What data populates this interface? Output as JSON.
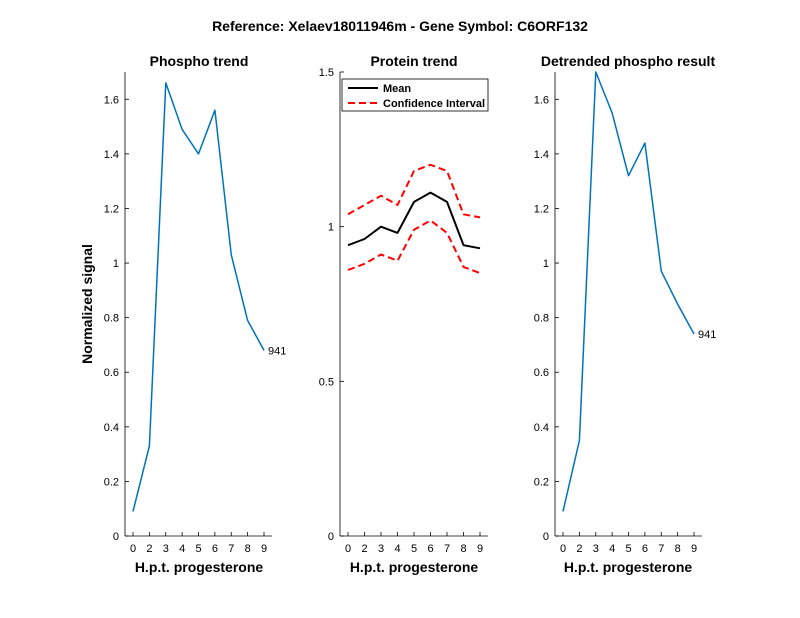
{
  "figure": {
    "title": "Reference:  Xelaev18011946m - Gene Symbol:  C6ORF132"
  },
  "colors": {
    "series_blue": "#0072BD",
    "mean_black": "#000000",
    "ci_red": "#FF0000"
  },
  "chart_data": [
    {
      "type": "line",
      "title": "Phospho trend",
      "xlabel": "H.p.t. progesterone",
      "ylabel": "Normalized signal",
      "x_ticks": [
        "0",
        "2",
        "3",
        "4",
        "5",
        "6",
        "7",
        "8",
        "9"
      ],
      "y_ticks": [
        "0",
        "0.2",
        "0.4",
        "0.6",
        "0.8",
        "1",
        "1.2",
        "1.4",
        "1.6"
      ],
      "ylim": [
        0,
        1.7
      ],
      "series": [
        {
          "values": [
            0.09,
            0.33,
            1.66,
            1.49,
            1.4,
            1.56,
            1.03,
            0.79,
            0.68
          ]
        }
      ],
      "end_label": "941"
    },
    {
      "type": "line",
      "title": "Protein trend",
      "xlabel": "H.p.t. progesterone",
      "ylabel": "",
      "x_ticks": [
        "0",
        "2",
        "3",
        "4",
        "5",
        "6",
        "7",
        "8",
        "9"
      ],
      "y_ticks": [
        "0",
        "0.5",
        "1",
        "1.5"
      ],
      "ylim": [
        0,
        1.5
      ],
      "legend": {
        "position": "top-left"
      },
      "series": [
        {
          "name": "Mean",
          "values": [
            0.94,
            0.96,
            1.0,
            0.98,
            1.08,
            1.11,
            1.08,
            0.94,
            0.93
          ]
        },
        {
          "name": "Confidence Interval",
          "values": [
            1.04,
            1.07,
            1.1,
            1.07,
            1.18,
            1.2,
            1.18,
            1.04,
            1.03
          ]
        },
        {
          "values": [
            0.86,
            0.88,
            0.91,
            0.89,
            0.99,
            1.02,
            0.98,
            0.87,
            0.85
          ]
        }
      ]
    },
    {
      "type": "line",
      "title": "Detrended phospho result",
      "xlabel": "H.p.t. progesterone",
      "ylabel": "",
      "x_ticks": [
        "0",
        "2",
        "3",
        "4",
        "5",
        "6",
        "7",
        "8",
        "9"
      ],
      "y_ticks": [
        "0",
        "0.2",
        "0.4",
        "0.6",
        "0.8",
        "1",
        "1.2",
        "1.4",
        "1.6"
      ],
      "ylim": [
        0,
        1.7
      ],
      "series": [
        {
          "values": [
            0.09,
            0.35,
            1.7,
            1.55,
            1.32,
            1.44,
            0.97,
            0.85,
            0.74
          ]
        }
      ],
      "end_label": "941"
    }
  ]
}
